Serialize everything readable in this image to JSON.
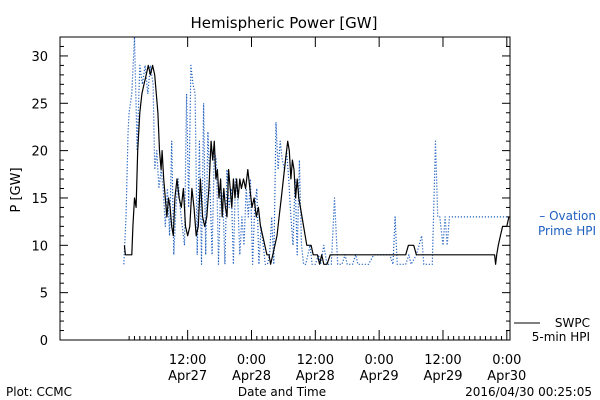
{
  "chart_data": {
    "type": "line",
    "title": "Hemispheric Power [GW]",
    "xlabel": "Date and Time",
    "ylabel": "P [GW]",
    "ylim": [
      0,
      32
    ],
    "y_ticks": [
      0,
      5,
      10,
      15,
      20,
      25,
      30
    ],
    "x_unit": "hours from 2016-04-26 12:00 UT",
    "xlim": [
      0,
      84.6
    ],
    "x_ticks": [
      {
        "x": 24,
        "top": "12:00",
        "bottom": "Apr27"
      },
      {
        "x": 36,
        "top": "0:00",
        "bottom": "Apr28"
      },
      {
        "x": 48,
        "top": "12:00",
        "bottom": "Apr28"
      },
      {
        "x": 60,
        "top": "0:00",
        "bottom": "Apr29"
      },
      {
        "x": 72,
        "top": "12:00",
        "bottom": "Apr29"
      },
      {
        "x": 84,
        "top": "0:00",
        "bottom": "Apr30"
      }
    ],
    "series": [
      {
        "name": "SWPC 5-min HPI",
        "label_lines": [
          "SWPC",
          "5-min HPI"
        ],
        "color": "#000000",
        "style": "solid",
        "points": [
          [
            12.1,
            10
          ],
          [
            12.3,
            9
          ],
          [
            13.5,
            9
          ],
          [
            13.7,
            12
          ],
          [
            14.0,
            15
          ],
          [
            14.3,
            14
          ],
          [
            14.6,
            20
          ],
          [
            15.0,
            24
          ],
          [
            15.4,
            26
          ],
          [
            15.8,
            27
          ],
          [
            16.2,
            28
          ],
          [
            16.6,
            29
          ],
          [
            17.0,
            28
          ],
          [
            17.4,
            29
          ],
          [
            17.8,
            28
          ],
          [
            18.1,
            26
          ],
          [
            18.4,
            24
          ],
          [
            18.7,
            20
          ],
          [
            19.0,
            18
          ],
          [
            19.2,
            20
          ],
          [
            19.5,
            17
          ],
          [
            19.8,
            15
          ],
          [
            20.1,
            13
          ],
          [
            20.4,
            15
          ],
          [
            20.7,
            14
          ],
          [
            21.0,
            12
          ],
          [
            21.3,
            11
          ],
          [
            21.6,
            15
          ],
          [
            22.0,
            17
          ],
          [
            22.4,
            15
          ],
          [
            22.8,
            14
          ],
          [
            23.2,
            16
          ],
          [
            23.6,
            12
          ],
          [
            24.0,
            11
          ],
          [
            24.4,
            12
          ],
          [
            24.8,
            16
          ],
          [
            25.2,
            14
          ],
          [
            25.6,
            11
          ],
          [
            26.0,
            12
          ],
          [
            26.4,
            17
          ],
          [
            26.8,
            13
          ],
          [
            27.2,
            12
          ],
          [
            27.6,
            13
          ],
          [
            28.0,
            16
          ],
          [
            28.4,
            21
          ],
          [
            28.7,
            19
          ],
          [
            29.0,
            21
          ],
          [
            29.3,
            17
          ],
          [
            29.6,
            18
          ],
          [
            29.9,
            15
          ],
          [
            30.2,
            17
          ],
          [
            30.5,
            13
          ],
          [
            30.8,
            16
          ],
          [
            31.1,
            14
          ],
          [
            31.4,
            13
          ],
          [
            31.7,
            18
          ],
          [
            32.0,
            16
          ],
          [
            32.3,
            14
          ],
          [
            32.6,
            17
          ],
          [
            32.9,
            15
          ],
          [
            33.2,
            17
          ],
          [
            33.5,
            15
          ],
          [
            33.8,
            17
          ],
          [
            34.1,
            16
          ],
          [
            34.5,
            17
          ],
          [
            34.9,
            16
          ],
          [
            35.3,
            18
          ],
          [
            35.7,
            16
          ],
          [
            36.1,
            14
          ],
          [
            36.5,
            15
          ],
          [
            36.9,
            13
          ],
          [
            37.3,
            14
          ],
          [
            37.7,
            12
          ],
          [
            38.1,
            11
          ],
          [
            38.5,
            10
          ],
          [
            38.9,
            9
          ],
          [
            39.3,
            9
          ],
          [
            39.6,
            8
          ],
          [
            40.0,
            9
          ],
          [
            40.4,
            10
          ],
          [
            40.8,
            11
          ],
          [
            41.2,
            13
          ],
          [
            41.6,
            15
          ],
          [
            42.0,
            17
          ],
          [
            42.4,
            19
          ],
          [
            42.8,
            21
          ],
          [
            43.1,
            20
          ],
          [
            43.4,
            17
          ],
          [
            43.7,
            19
          ],
          [
            44.0,
            18
          ],
          [
            44.3,
            15
          ],
          [
            44.6,
            17
          ],
          [
            44.9,
            15
          ],
          [
            45.2,
            14
          ],
          [
            45.5,
            13
          ],
          [
            45.8,
            12
          ],
          [
            46.1,
            11
          ],
          [
            46.4,
            10
          ],
          [
            46.8,
            10
          ],
          [
            47.2,
            10
          ],
          [
            47.6,
            9
          ],
          [
            48.0,
            9
          ],
          [
            48.4,
            9
          ],
          [
            48.8,
            8
          ],
          [
            49.2,
            9
          ],
          [
            49.6,
            8
          ],
          [
            50.2,
            8
          ],
          [
            50.8,
            9
          ],
          [
            51.4,
            9
          ],
          [
            52.0,
            9
          ],
          [
            54.0,
            9
          ],
          [
            56.0,
            9
          ],
          [
            58.0,
            9
          ],
          [
            60.0,
            9
          ],
          [
            62.0,
            9
          ],
          [
            64.0,
            9
          ],
          [
            65.0,
            9
          ],
          [
            65.5,
            10
          ],
          [
            66.5,
            10
          ],
          [
            67.0,
            9
          ],
          [
            68.0,
            9
          ],
          [
            69.0,
            9
          ],
          [
            70.0,
            9
          ],
          [
            71.0,
            9
          ],
          [
            72.0,
            9
          ],
          [
            73.0,
            9
          ],
          [
            74.0,
            9
          ],
          [
            75.0,
            9
          ],
          [
            76.0,
            9
          ],
          [
            77.0,
            9
          ],
          [
            78.0,
            9
          ],
          [
            79.0,
            9
          ],
          [
            80.0,
            9
          ],
          [
            81.0,
            9
          ],
          [
            81.7,
            9
          ],
          [
            81.9,
            8
          ],
          [
            82.1,
            9
          ],
          [
            82.4,
            10
          ],
          [
            82.8,
            11
          ],
          [
            83.2,
            12
          ],
          [
            83.6,
            12
          ],
          [
            84.0,
            12
          ],
          [
            84.4,
            13
          ]
        ]
      },
      {
        "name": "Ovation Prime HPI",
        "label_lines": [
          "– Ovation",
          "Prime HPI"
        ],
        "color": "#1f5fbf",
        "style": "dotted",
        "points": [
          [
            12.0,
            8
          ],
          [
            12.4,
            13
          ],
          [
            12.8,
            22
          ],
          [
            13.0,
            24
          ],
          [
            13.5,
            26
          ],
          [
            14.0,
            32
          ],
          [
            14.5,
            20
          ],
          [
            15.0,
            29
          ],
          [
            15.5,
            27
          ],
          [
            16.0,
            29
          ],
          [
            16.5,
            26
          ],
          [
            17.0,
            29
          ],
          [
            17.5,
            27
          ],
          [
            17.8,
            18
          ],
          [
            18.2,
            20
          ],
          [
            18.6,
            16
          ],
          [
            19.0,
            18
          ],
          [
            19.4,
            16
          ],
          [
            19.8,
            12
          ],
          [
            20.2,
            16
          ],
          [
            20.6,
            11
          ],
          [
            21.0,
            21
          ],
          [
            21.4,
            9
          ],
          [
            21.8,
            14
          ],
          [
            22.2,
            17
          ],
          [
            22.6,
            14
          ],
          [
            23.0,
            12
          ],
          [
            23.4,
            10
          ],
          [
            23.8,
            26
          ],
          [
            24.2,
            14
          ],
          [
            24.6,
            29
          ],
          [
            25.0,
            27
          ],
          [
            25.4,
            26
          ],
          [
            25.8,
            9
          ],
          [
            26.2,
            21
          ],
          [
            26.6,
            8
          ],
          [
            27.0,
            25
          ],
          [
            27.4,
            9
          ],
          [
            27.8,
            22
          ],
          [
            28.2,
            16
          ],
          [
            28.6,
            9
          ],
          [
            29.0,
            20
          ],
          [
            29.4,
            19
          ],
          [
            29.8,
            8
          ],
          [
            30.2,
            16
          ],
          [
            30.6,
            15
          ],
          [
            31.0,
            8
          ],
          [
            31.4,
            18
          ],
          [
            31.8,
            14
          ],
          [
            32.2,
            16
          ],
          [
            32.6,
            8
          ],
          [
            33.0,
            17
          ],
          [
            33.4,
            15
          ],
          [
            33.8,
            9
          ],
          [
            34.2,
            13
          ],
          [
            34.6,
            10
          ],
          [
            35.0,
            16
          ],
          [
            35.4,
            13
          ],
          [
            35.8,
            17
          ],
          [
            36.2,
            8
          ],
          [
            36.6,
            14
          ],
          [
            37.0,
            16
          ],
          [
            37.4,
            8
          ],
          [
            37.8,
            12
          ],
          [
            38.2,
            10
          ],
          [
            38.6,
            8
          ],
          [
            39.0,
            8
          ],
          [
            39.4,
            9
          ],
          [
            39.8,
            13
          ],
          [
            40.2,
            8
          ],
          [
            40.6,
            23
          ],
          [
            41.0,
            18
          ],
          [
            41.4,
            21
          ],
          [
            41.8,
            19
          ],
          [
            42.2,
            18
          ],
          [
            42.6,
            20
          ],
          [
            43.0,
            17
          ],
          [
            43.4,
            13
          ],
          [
            43.8,
            10
          ],
          [
            44.2,
            17
          ],
          [
            44.6,
            9
          ],
          [
            45.0,
            19
          ],
          [
            45.4,
            10
          ],
          [
            45.8,
            8
          ],
          [
            46.2,
            8
          ],
          [
            46.6,
            9
          ],
          [
            47.0,
            10
          ],
          [
            47.4,
            8
          ],
          [
            48.0,
            8
          ],
          [
            48.6,
            9
          ],
          [
            49.0,
            8
          ],
          [
            49.6,
            10
          ],
          [
            50.2,
            8
          ],
          [
            51.0,
            8
          ],
          [
            51.6,
            15
          ],
          [
            52.2,
            8
          ],
          [
            53.0,
            8
          ],
          [
            53.6,
            9
          ],
          [
            54.0,
            8
          ],
          [
            55.0,
            8
          ],
          [
            55.6,
            9
          ],
          [
            56.0,
            8
          ],
          [
            57.0,
            8
          ],
          [
            58.0,
            8
          ],
          [
            59.0,
            9
          ],
          [
            60.0,
            9
          ],
          [
            61.0,
            9
          ],
          [
            62.0,
            9
          ],
          [
            62.6,
            8
          ],
          [
            63.0,
            13
          ],
          [
            63.4,
            8
          ],
          [
            64.0,
            8
          ],
          [
            65.0,
            8
          ],
          [
            65.6,
            9
          ],
          [
            66.0,
            8
          ],
          [
            67.0,
            9
          ],
          [
            68.0,
            11
          ],
          [
            68.4,
            8
          ],
          [
            69.0,
            8
          ],
          [
            70.0,
            8
          ],
          [
            70.6,
            21
          ],
          [
            71.0,
            13
          ],
          [
            71.4,
            13
          ],
          [
            72.0,
            10
          ],
          [
            72.4,
            13
          ],
          [
            72.8,
            10
          ],
          [
            73.2,
            13
          ],
          [
            73.6,
            13
          ],
          [
            84.4,
            13
          ]
        ]
      }
    ],
    "footer": {
      "left": "Plot: CCMC",
      "center": "Date and Time",
      "right": "2016/04/30 00:25:05"
    }
  }
}
